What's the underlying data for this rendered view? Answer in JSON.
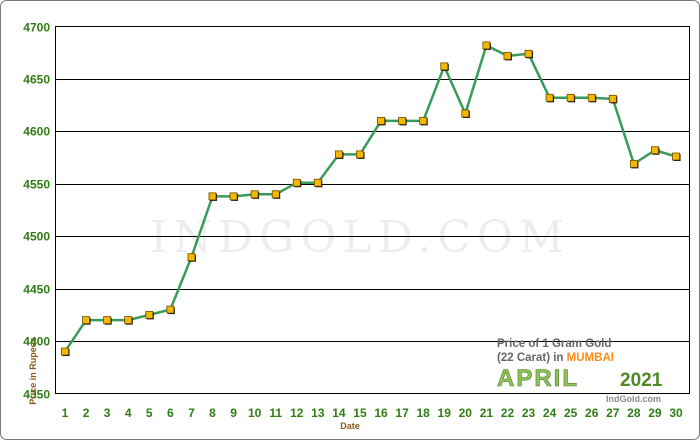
{
  "chart_data": {
    "type": "line",
    "title": "Price of 1 Gram Gold",
    "subtitle_prefix": "(22 Carat) in ",
    "city": "MUMBAI",
    "month": "APRIL",
    "year": "2021",
    "xlabel": "Date",
    "ylabel": "Price in Rupees",
    "watermark": "INDGOLD.COM",
    "credit": "IndGold.com",
    "ylim": [
      4350,
      4700
    ],
    "yticks": [
      4350,
      4400,
      4450,
      4500,
      4550,
      4600,
      4650,
      4700
    ],
    "grid": true,
    "x": [
      1,
      2,
      3,
      4,
      5,
      6,
      7,
      8,
      9,
      10,
      11,
      12,
      13,
      14,
      15,
      16,
      17,
      18,
      19,
      20,
      21,
      22,
      23,
      24,
      25,
      26,
      27,
      28,
      29,
      30
    ],
    "values": [
      4390,
      4420,
      4420,
      4420,
      4425,
      4430,
      4480,
      4538,
      4538,
      4540,
      4540,
      4551,
      4551,
      4578,
      4578,
      4610,
      4610,
      4610,
      4662,
      4617,
      4682,
      4672,
      4674,
      4632,
      4632,
      4632,
      4631,
      4569,
      4582,
      4576
    ],
    "colors": {
      "line": "#3a9a5a",
      "marker": "#f5b800",
      "tick": "#2f7d14"
    }
  }
}
